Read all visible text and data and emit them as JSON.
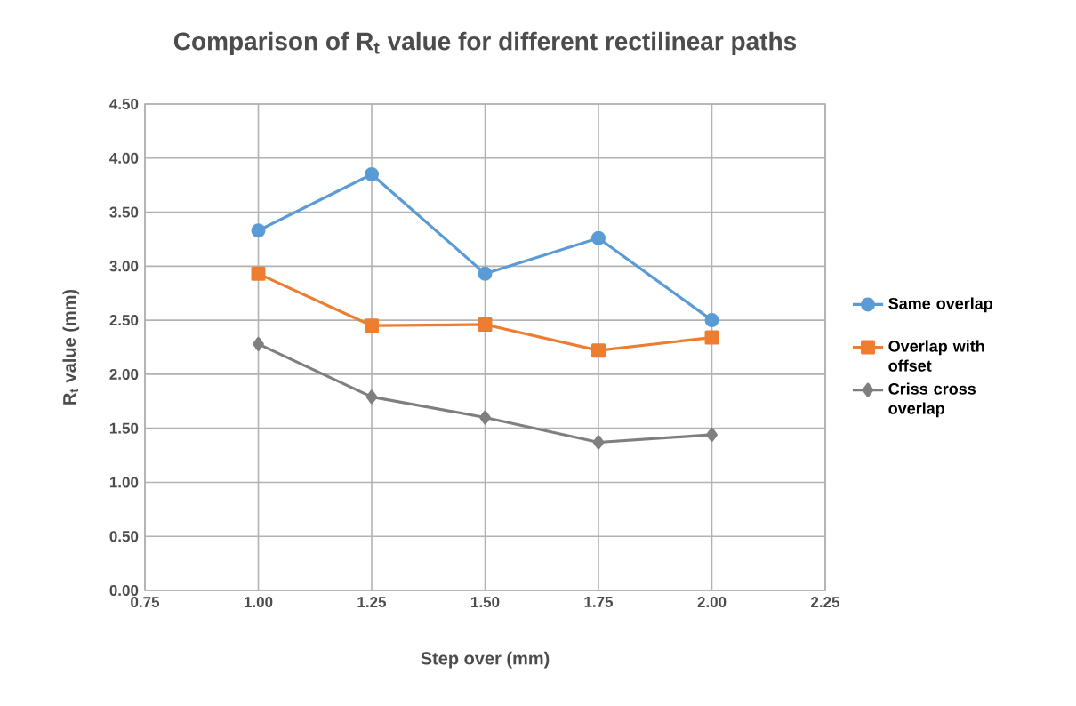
{
  "chart_data": {
    "type": "line",
    "title": "Comparison of R$_{t}$ value for different rectilinear paths",
    "xlabel": "Step over (mm)",
    "ylabel": "R$_{t}$ value (mm)",
    "x": [
      1.0,
      1.25,
      1.5,
      1.75,
      2.0
    ],
    "series": [
      {
        "name": "Same overlap",
        "color": "#5b9bd5",
        "marker": "circle",
        "values": [
          3.33,
          3.85,
          2.93,
          3.26,
          2.5
        ]
      },
      {
        "name": "Overlap with offset",
        "color": "#ed7d31",
        "marker": "square",
        "values": [
          2.93,
          2.45,
          2.46,
          2.22,
          2.34
        ]
      },
      {
        "name": "Criss cross overlap",
        "color": "#7f7f7f",
        "marker": "diamond",
        "values": [
          2.28,
          1.79,
          1.6,
          1.37,
          1.44
        ]
      }
    ],
    "xlim": [
      0.75,
      2.25
    ],
    "ylim": [
      0,
      4.5
    ],
    "xticks": [
      {
        "value": 0.75,
        "label": "0.75"
      },
      {
        "value": 1.0,
        "label": "1.00"
      },
      {
        "value": 1.25,
        "label": "1.25"
      },
      {
        "value": 1.5,
        "label": "1.50"
      },
      {
        "value": 1.75,
        "label": "1.75"
      },
      {
        "value": 2.0,
        "label": "2.00"
      },
      {
        "value": 2.25,
        "label": "2.25"
      }
    ],
    "yticks": [
      {
        "value": 0,
        "label": "0.00"
      },
      {
        "value": 0.5,
        "label": "0.50"
      },
      {
        "value": 1.0,
        "label": "1.00"
      },
      {
        "value": 1.5,
        "label": "1.50"
      },
      {
        "value": 2.0,
        "label": "2.00"
      },
      {
        "value": 2.5,
        "label": "2.50"
      },
      {
        "value": 3.0,
        "label": "3.00"
      },
      {
        "value": 3.5,
        "label": "3.50"
      },
      {
        "value": 4.0,
        "label": "4.00"
      },
      {
        "value": 4.5,
        "label": "4.50"
      }
    ],
    "grid": true,
    "legend": "right",
    "line_style": "solid"
  }
}
